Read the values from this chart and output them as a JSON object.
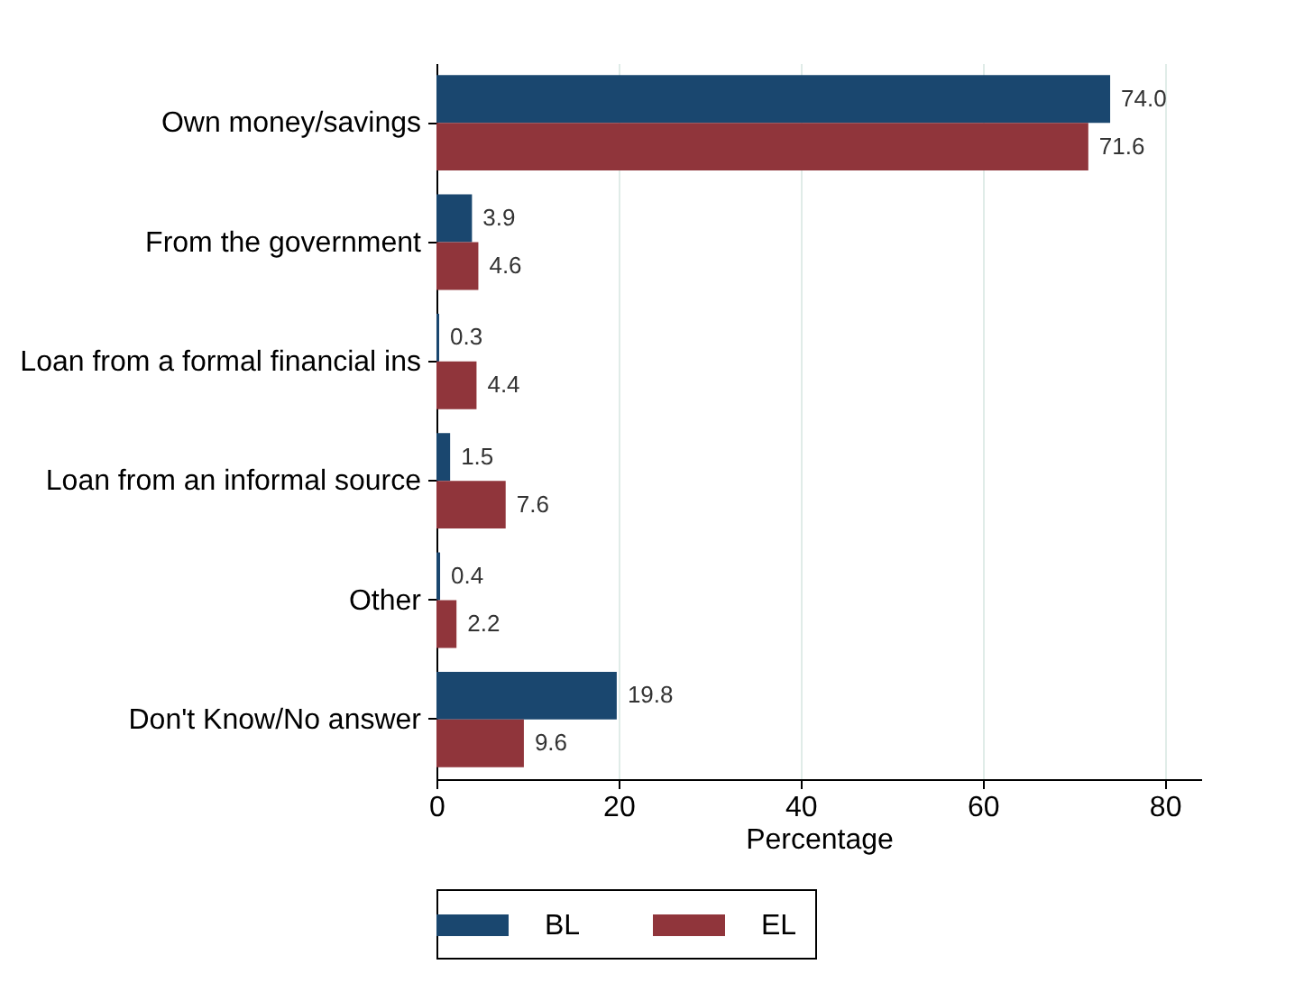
{
  "chart_data": {
    "type": "bar",
    "orientation": "horizontal",
    "xlabel": "Percentage",
    "categories": [
      "Own money/savings",
      "From the government",
      "Loan from a formal financial ins",
      "Loan from an informal source",
      "Other",
      "Don't Know/No answer"
    ],
    "series": [
      {
        "name": "BL",
        "color": "#1a476f",
        "values": [
          74.0,
          3.9,
          0.3,
          1.5,
          0.4,
          19.8
        ],
        "value_labels": [
          "74.0",
          "3.9",
          "0.3",
          "1.5",
          "0.4",
          "19.8"
        ]
      },
      {
        "name": "EL",
        "color": "#90353b",
        "values": [
          71.6,
          4.6,
          4.4,
          7.6,
          2.2,
          9.6
        ],
        "value_labels": [
          "71.6",
          "4.6",
          "4.4",
          "7.6",
          "2.2",
          "9.6"
        ]
      }
    ],
    "xlim": [
      0,
      84
    ],
    "xticks": [
      0,
      20,
      40,
      60,
      80
    ],
    "grid": "x",
    "legend": "bottom"
  }
}
